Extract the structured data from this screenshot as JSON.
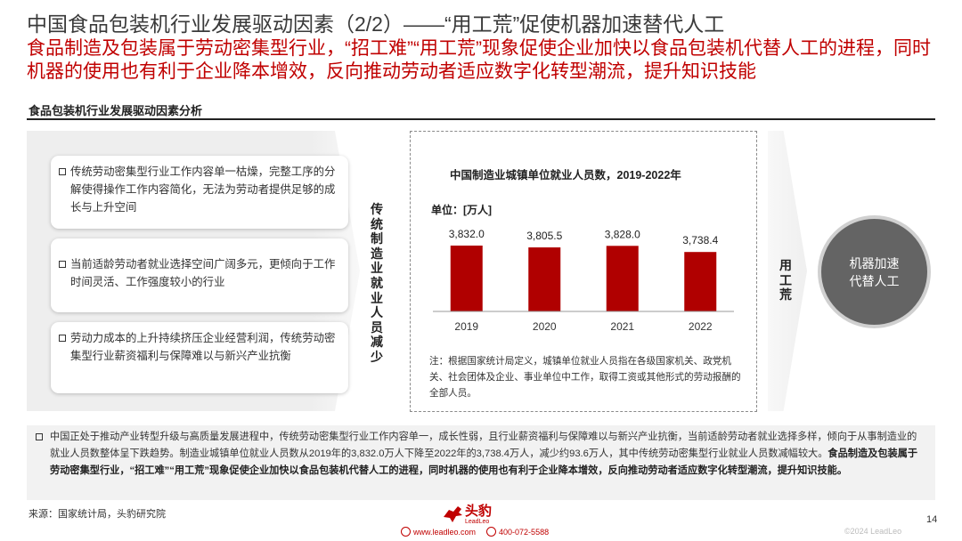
{
  "title": "中国食品包装机行业发展驱动因素（2/2）——“用工荒”促使机器加速替代人工",
  "subtitle": "食品制造及包装属于劳动密集型行业，“招工难”“用工荒”现象促使企业加快以食品包装机代替人工的进程，同时机器的使用也有利于企业降本增效，反向推动劳动者适应数字化转型潮流，提升知识技能",
  "section_heading": "食品包装机行业发展驱动因素分析",
  "cards": [
    "传统劳动密集型行业工作内容单一枯燥，完整工序的分解使得操作工作内容简化，无法为劳动者提供足够的成长与上升空间",
    "当前适龄劳动者就业选择空间广阔多元，更倾向于工作时间灵活、工作强度较小的行业",
    "劳动力成本的上升持续挤压企业经营利润，传统劳动密集型行业薪资福利与保障难以与新兴产业抗衡"
  ],
  "vertical_label_left": "传统制造业就业人员减少",
  "vertical_label_right": "用工荒",
  "unit_label": "单位：[万人]",
  "note": "注：根据国家统计局定义，城镇单位就业人员指在各级国家机关、政党机关、社会团体及企业、事业单位中工作，取得工资或其他形式的劳动报酬的全部人员。",
  "circle_line1": "机器加速",
  "circle_line2": "代替人工",
  "summary_normal": "中国正处于推动产业转型升级与高质量发展进程中，传统劳动密集型行业工作内容单一，成长性弱，且行业薪资福利与保障难以与新兴产业抗衡，当前适龄劳动者就业选择多样，倾向于从事制造业的就业人员数整体呈下跌趋势。制造业城镇单位就业人员数从2019年的3,832.0万人下降至2022年的3,738.4万人，减少约93.6万人，其中传统劳动密集型行业就业人员数减幅较大。",
  "summary_bold": "食品制造及包装属于劳动密集型行业，“招工难”“用工荒”现象促使企业加快以食品包装机代替人工的进程，同时机器的使用也有利于企业降本增效，反向推动劳动者适应数字化转型潮流，提升知识技能。",
  "source": "来源：国家统计局，头豹研究院",
  "logo_cn": "头豹",
  "logo_en": "LeadLeo",
  "website": "www.leadleo.com",
  "phone": "400-072-5588",
  "page_number": "14",
  "copyright": "©2024 LeadLeo",
  "colors": {
    "accent": "#c00000",
    "bar": "#b00000",
    "circle": "#646464"
  },
  "chart_data": {
    "type": "bar",
    "title": "中国制造业城镇单位就业人员数，2019-2022年",
    "categories": [
      "2019",
      "2020",
      "2021",
      "2022"
    ],
    "values": [
      3832.0,
      3805.5,
      3828.0,
      3738.4
    ],
    "value_labels": [
      "3,832.0",
      "3,805.5",
      "3,828.0",
      "3,738.4"
    ],
    "ylabel": "单位：[万人]",
    "grid": false
  }
}
